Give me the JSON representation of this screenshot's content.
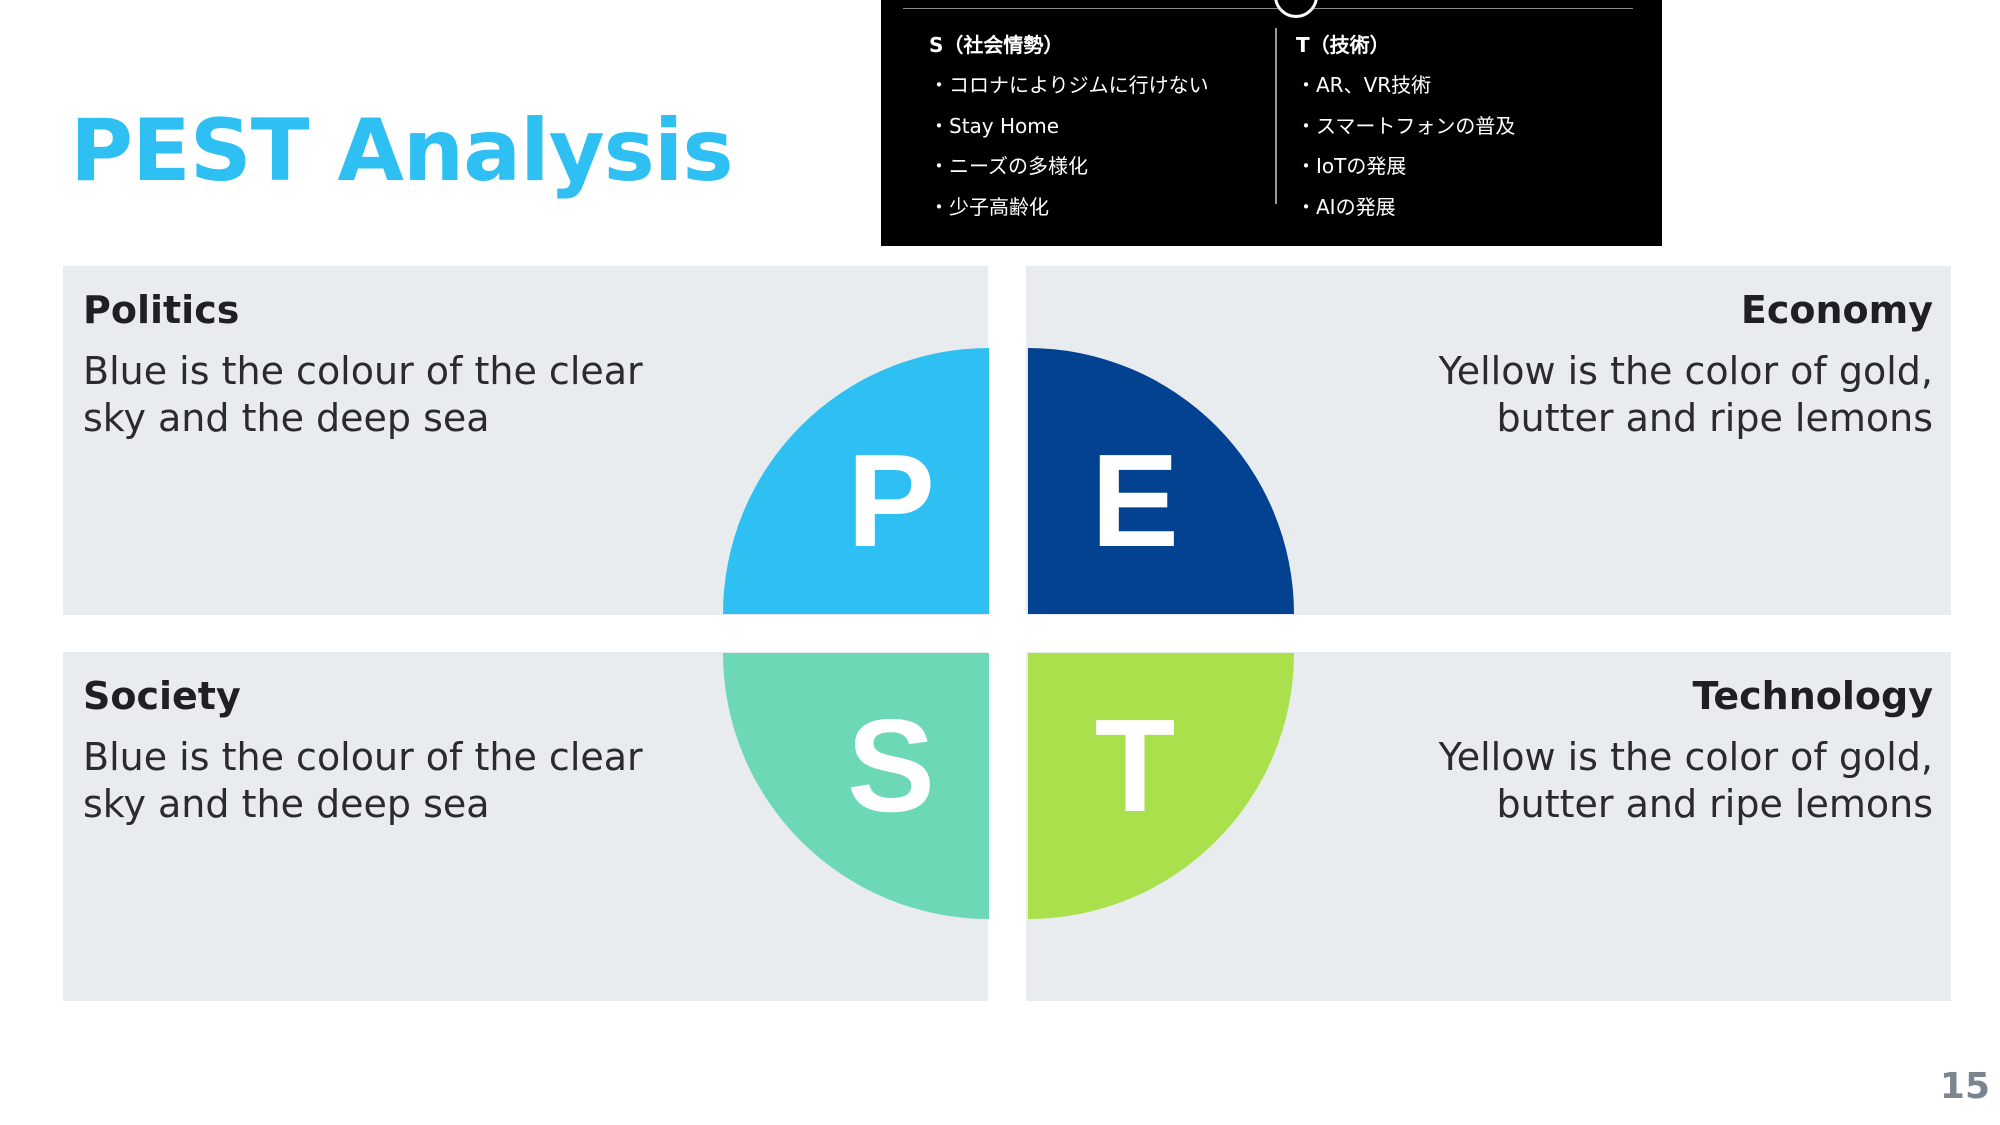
{
  "slide": {
    "title": "PEST Analysis",
    "page_number": "15"
  },
  "inset": {
    "left_heading": "S（社会情勢）",
    "left_items": [
      "・コロナによりジムに行けない",
      "・Stay Home",
      "・ニーズの多様化",
      "・少子高齢化"
    ],
    "right_heading": "T（技術）",
    "right_items": [
      "・AR、VR技術",
      "・スマートフォンの普及",
      "・IoTの発展",
      "・AIの発展"
    ]
  },
  "panels": {
    "politics": {
      "heading": "Politics",
      "line1": "Blue is the colour of the clear",
      "line2": "sky and the deep sea"
    },
    "economy": {
      "heading": "Economy",
      "line1": "Yellow is the color of gold,",
      "line2": "butter and ripe lemons"
    },
    "society": {
      "heading": "Society",
      "line1": "Blue is the colour of the clear",
      "line2": "sky and the deep sea"
    },
    "technology": {
      "heading": "Technology",
      "line1": "Yellow is the color of gold,",
      "line2": "butter and ripe lemons"
    }
  },
  "quadrants": [
    {
      "letter": "P",
      "color": "#2ec0f2"
    },
    {
      "letter": "E",
      "color": "#034191"
    },
    {
      "letter": "S",
      "color": "#6cd8b6"
    },
    {
      "letter": "T",
      "color": "#a9e04c"
    }
  ],
  "colors": {
    "title": "#2ec0f2",
    "panel_background": "#e8ecee",
    "page_number": "#7a8590"
  }
}
